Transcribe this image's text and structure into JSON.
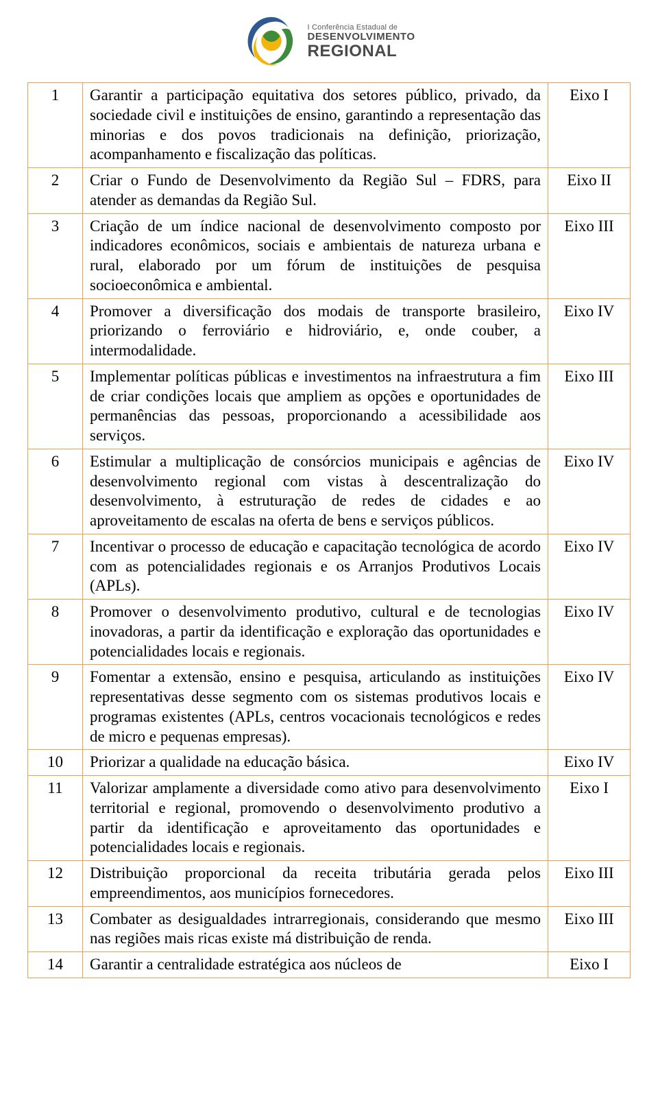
{
  "logo": {
    "line1": "I Conferência Estadual de",
    "line2": "DESENVOLVIMENTO",
    "line3": "REGIONAL",
    "colors": {
      "blue": "#2f5a8f",
      "green": "#3d8b3d",
      "yellow": "#f2b60a",
      "text": "#4a4a4a"
    }
  },
  "table": {
    "border_color": "#f0a04a",
    "font_size_pt": 17,
    "columns": [
      "num",
      "desc",
      "eixo"
    ],
    "rows": [
      {
        "num": "1",
        "desc": "Garantir a participação equitativa dos setores público, privado, da sociedade civil e instituições de ensino, garantindo a representação das minorias e dos povos tradicionais na definição, priorização, acompanhamento e fiscalização das políticas.",
        "eixo": "Eixo I"
      },
      {
        "num": "2",
        "desc": "Criar o Fundo de Desenvolvimento da Região Sul – FDRS, para atender as demandas da Região Sul.",
        "eixo": "Eixo II"
      },
      {
        "num": "3",
        "desc": "Criação de um índice nacional de desenvolvimento composto por indicadores econômicos, sociais e ambientais de natureza urbana e rural, elaborado por um fórum de instituições de pesquisa socioeconômica e ambiental.",
        "eixo": "Eixo III"
      },
      {
        "num": "4",
        "desc": "Promover a diversificação dos modais de transporte brasileiro, priorizando o ferroviário e hidroviário, e, onde couber, a intermodalidade.",
        "eixo": "Eixo IV"
      },
      {
        "num": "5",
        "desc": "Implementar políticas públicas e investimentos na infraestrutura a fim de criar condições locais que ampliem as opções e oportunidades de permanências das pessoas, proporcionando a acessibilidade aos serviços.",
        "eixo": "Eixo III"
      },
      {
        "num": "6",
        "desc": "Estimular a multiplicação de consórcios municipais e agências de desenvolvimento regional com vistas à descentralização do desenvolvimento, à estruturação de redes de cidades e ao aproveitamento de escalas na oferta de bens e serviços públicos.",
        "eixo": "Eixo IV"
      },
      {
        "num": "7",
        "desc": "Incentivar o processo de educação e capacitação tecnológica de acordo com as potencialidades regionais e os Arranjos Produtivos Locais (APLs).",
        "eixo": "Eixo IV"
      },
      {
        "num": "8",
        "desc": "Promover o desenvolvimento produtivo, cultural e de tecnologias inovadoras, a partir da identificação e exploração das oportunidades e potencialidades locais e regionais.",
        "eixo": "Eixo IV"
      },
      {
        "num": "9",
        "desc": "Fomentar a extensão, ensino e pesquisa, articulando as instituições representativas desse segmento com os sistemas produtivos locais e programas existentes (APLs, centros vocacionais tecnológicos e redes de micro e pequenas empresas).",
        "eixo": "Eixo IV"
      },
      {
        "num": "10",
        "desc": "Priorizar a qualidade na educação básica.",
        "eixo": "Eixo IV"
      },
      {
        "num": "11",
        "desc": "Valorizar amplamente a diversidade como ativo para desenvolvimento territorial e regional, promovendo o desenvolvimento produtivo a partir da identificação e aproveitamento das oportunidades e potencialidades locais e regionais.",
        "eixo": "Eixo I"
      },
      {
        "num": "12",
        "desc": "Distribuição proporcional da receita tributária gerada pelos empreendimentos, aos municípios fornecedores.",
        "eixo": "Eixo III"
      },
      {
        "num": "13",
        "desc": "Combater as desigualdades intrarregionais, considerando que mesmo nas regiões mais ricas existe má distribuição de renda.",
        "eixo": "Eixo III"
      },
      {
        "num": "14",
        "desc": "Garantir a centralidade estratégica aos núcleos de",
        "eixo": "Eixo I"
      }
    ]
  }
}
